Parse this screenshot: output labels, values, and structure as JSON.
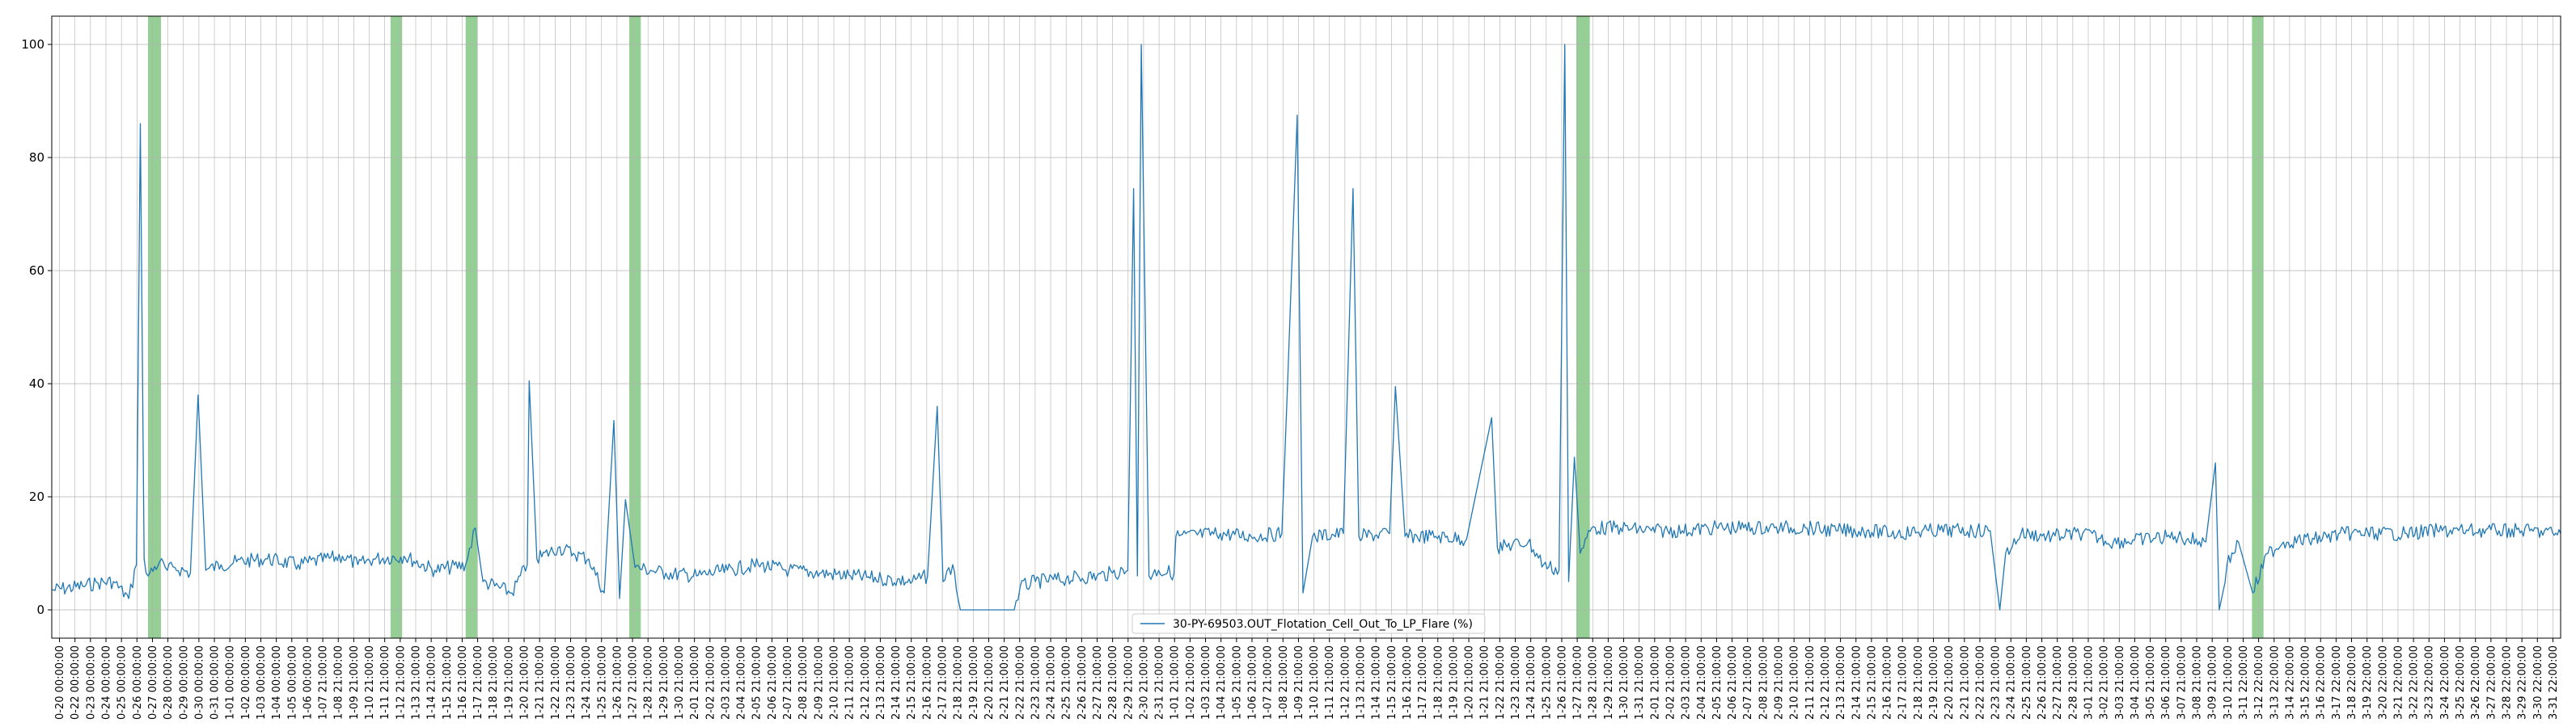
{
  "chart_data": {
    "type": "line",
    "title": "",
    "xlabel": "",
    "ylabel": "",
    "ylim": [
      -5,
      105
    ],
    "yticks": [
      0,
      20,
      40,
      60,
      80,
      100
    ],
    "grid": true,
    "legend_position": "bottom-center",
    "colors": {
      "line": "#1f77b4",
      "highlight": "#2ca02c",
      "grid": "#b0b0b0"
    },
    "series": [
      {
        "name": "30-PY-69503.OUT_Flotation_Cell_Out_To_LP_Flare (%)",
        "points": [
          [
            "10-20 00:00",
            3.5
          ],
          [
            "10-22 00:00",
            4.2
          ],
          [
            "10-23 00:00",
            4.8
          ],
          [
            "10-24 00:00",
            5.0
          ],
          [
            "10-25 00:00",
            2.0
          ],
          [
            "10-25 12:00",
            8.0
          ],
          [
            "10-25 18:00",
            86.0
          ],
          [
            "10-26 00:00",
            9.0
          ],
          [
            "10-26 06:00",
            6.0
          ],
          [
            "10-27 00:00",
            8.5
          ],
          [
            "10-27 12:00",
            7.0
          ],
          [
            "10-28 00:00",
            7.5
          ],
          [
            "10-29 00:00",
            6.5
          ],
          [
            "10-29 12:00",
            38.0
          ],
          [
            "10-30 00:00",
            7.0
          ],
          [
            "10-31 00:00",
            8.0
          ],
          [
            "11-01 00:00",
            8.5
          ],
          [
            "11-03 00:00",
            9.0
          ],
          [
            "11-05 00:00",
            8.0
          ],
          [
            "11-07 21:00",
            9.5
          ],
          [
            "11-08 21:00",
            8.0
          ],
          [
            "11-09 21:00",
            9.0
          ],
          [
            "11-11 21:00",
            9.5
          ],
          [
            "11-13 21:00",
            7.0
          ],
          [
            "11-15 21:00",
            8.0
          ],
          [
            "11-16 12:00",
            14.5
          ],
          [
            "11-17 00:00",
            5.0
          ],
          [
            "11-18 21:00",
            3.0
          ],
          [
            "11-19 21:00",
            8.0
          ],
          [
            "11-20 00:00",
            40.5
          ],
          [
            "11-20 12:00",
            9.0
          ],
          [
            "11-21 21:00",
            11.0
          ],
          [
            "11-22 21:00",
            10.0
          ],
          [
            "11-23 21:00",
            9.0
          ],
          [
            "11-24 21:00",
            3.0
          ],
          [
            "11-25 12:00",
            33.5
          ],
          [
            "11-25 21:00",
            2.0
          ],
          [
            "11-26 06:00",
            19.5
          ],
          [
            "11-26 21:00",
            7.5
          ],
          [
            "11-27 21:00",
            7.0
          ],
          [
            "11-28 21:00",
            6.5
          ],
          [
            "11-30 21:00",
            6.0
          ],
          [
            "12-02 21:00",
            7.0
          ],
          [
            "12-04 21:00",
            8.0
          ],
          [
            "12-06 21:00",
            7.0
          ],
          [
            "12-08 21:00",
            6.5
          ],
          [
            "12-10 21:00",
            6.0
          ],
          [
            "12-12 21:00",
            5.5
          ],
          [
            "12-14 21:00",
            5.0
          ],
          [
            "12-15 21:00",
            6.0
          ],
          [
            "12-16 12:00",
            36.0
          ],
          [
            "12-16 21:00",
            5.0
          ],
          [
            "12-17 12:00",
            8.0
          ],
          [
            "12-18 00:00",
            0.0
          ],
          [
            "12-20 21:00",
            0.0
          ],
          [
            "12-21 12:00",
            0.0
          ],
          [
            "12-21 21:00",
            4.0
          ],
          [
            "12-22 21:00",
            5.0
          ],
          [
            "12-24 21:00",
            5.5
          ],
          [
            "12-26 21:00",
            6.0
          ],
          [
            "12-27 21:00",
            6.5
          ],
          [
            "12-28 21:00",
            7.0
          ],
          [
            "12-29 06:00",
            74.5
          ],
          [
            "12-29 12:00",
            6.0
          ],
          [
            "12-29 18:00",
            100.0
          ],
          [
            "12-30 06:00",
            6.0
          ],
          [
            "12-30 21:00",
            7.0
          ],
          [
            "12-31 21:00",
            6.5
          ],
          [
            "01-01 00:00",
            13.0
          ],
          [
            "01-03 21:00",
            13.5
          ],
          [
            "01-05 21:00",
            13.0
          ],
          [
            "01-07 21:00",
            13.5
          ],
          [
            "01-08 06:00",
            40.0
          ],
          [
            "01-08 21:00",
            87.5
          ],
          [
            "01-09 06:00",
            3.0
          ],
          [
            "01-09 21:00",
            13.0
          ],
          [
            "01-11 21:00",
            13.5
          ],
          [
            "01-12 12:00",
            74.5
          ],
          [
            "01-12 21:00",
            13.0
          ],
          [
            "01-14 21:00",
            13.5
          ],
          [
            "01-15 06:00",
            39.5
          ],
          [
            "01-15 21:00",
            13.0
          ],
          [
            "01-17 21:00",
            13.0
          ],
          [
            "01-19 21:00",
            12.5
          ],
          [
            "01-21 12:00",
            34.0
          ],
          [
            "01-21 21:00",
            11.0
          ],
          [
            "01-23 21:00",
            12.0
          ],
          [
            "01-24 21:00",
            8.0
          ],
          [
            "01-25 21:00",
            7.0
          ],
          [
            "01-26 06:00",
            100.0
          ],
          [
            "01-26 12:00",
            5.0
          ],
          [
            "01-26 21:00",
            27.0
          ],
          [
            "01-27 06:00",
            10.0
          ],
          [
            "01-28 00:00",
            14.5
          ],
          [
            "01-29 21:00",
            14.5
          ],
          [
            "01-31 21:00",
            14.0
          ],
          [
            "02-02 21:00",
            14.0
          ],
          [
            "02-04 21:00",
            14.5
          ],
          [
            "02-06 21:00",
            14.5
          ],
          [
            "02-08 21:00",
            14.5
          ],
          [
            "02-10 21:00",
            14.5
          ],
          [
            "02-12 21:00",
            14.0
          ],
          [
            "02-14 21:00",
            14.0
          ],
          [
            "02-16 21:00",
            13.5
          ],
          [
            "02-18 21:00",
            14.0
          ],
          [
            "02-20 21:00",
            14.0
          ],
          [
            "02-22 21:00",
            14.0
          ],
          [
            "02-23 12:00",
            0.0
          ],
          [
            "02-23 21:00",
            10.0
          ],
          [
            "02-24 21:00",
            13.5
          ],
          [
            "02-26 21:00",
            13.0
          ],
          [
            "02-28 21:00",
            13.5
          ],
          [
            "03-02 21:00",
            12.0
          ],
          [
            "03-04 21:00",
            12.5
          ],
          [
            "03-06 21:00",
            13.0
          ],
          [
            "03-08 21:00",
            12.0
          ],
          [
            "03-09 12:00",
            26.0
          ],
          [
            "03-09 18:00",
            0.0
          ],
          [
            "03-10 06:00",
            8.0
          ],
          [
            "03-11 00:00",
            12.0
          ],
          [
            "03-11 22:00",
            3.0
          ],
          [
            "03-12 22:00",
            10.0
          ],
          [
            "03-13 22:00",
            12.0
          ],
          [
            "03-15 22:00",
            12.5
          ],
          [
            "03-17 22:00",
            13.5
          ],
          [
            "03-19 22:00",
            13.5
          ],
          [
            "03-21 22:00",
            13.5
          ],
          [
            "03-23 22:00",
            14.0
          ],
          [
            "03-25 22:00",
            14.0
          ],
          [
            "03-27 22:00",
            14.0
          ],
          [
            "03-29 22:00",
            14.0
          ],
          [
            "03-31 22:00",
            13.5
          ]
        ]
      }
    ],
    "highlight_spans": [
      [
        "10-26 06:00",
        "10-26 21:00"
      ],
      [
        "11-11 00:00",
        "11-11 18:00"
      ],
      [
        "11-15 21:00",
        "11-16 15:00"
      ],
      [
        "11-26 12:00",
        "11-27 06:00"
      ],
      [
        "01-27 00:00",
        "01-27 21:00"
      ],
      [
        "03-11 21:00",
        "03-12 15:00"
      ]
    ],
    "x_tick_labels": [
      "0-20 00:00:00",
      "0-22 00:00:00",
      "0-23 00:00:00",
      "0-24 00:00:00",
      "0-25 00:00:00",
      "0-26 00:00:00",
      "0-27 00:00:00",
      "0-28 00:00:00",
      "0-29 00:00:00",
      "0-30 00:00:00",
      "0-31 00:00:00",
      "1-01 00:00:00",
      "1-02 00:00:00",
      "1-03 00:00:00",
      "1-04 00:00:00",
      "1-05 00:00:00",
      "1-06 00:00:00",
      "1-07 21:00:00",
      "1-08 21:00:00",
      "1-09 21:00:00",
      "1-10 21:00:00",
      "1-11 21:00:00",
      "1-12 21:00:00",
      "1-13 21:00:00",
      "1-14 21:00:00",
      "1-15 21:00:00",
      "1-16 21:00:00",
      "1-17 21:00:00",
      "1-18 21:00:00",
      "1-19 21:00:00",
      "1-20 21:00:00",
      "1-21 21:00:00",
      "1-22 21:00:00",
      "1-23 21:00:00",
      "1-24 21:00:00",
      "1-25 21:00:00",
      "1-26 21:00:00",
      "1-27 21:00:00",
      "1-28 21:00:00",
      "1-29 21:00:00",
      "1-30 21:00:00",
      "2-01 21:00:00",
      "2-02 21:00:00",
      "2-03 21:00:00",
      "2-04 21:00:00",
      "2-05 21:00:00",
      "2-06 21:00:00",
      "2-07 21:00:00",
      "2-08 21:00:00",
      "2-09 21:00:00",
      "2-10 21:00:00",
      "2-11 21:00:00",
      "2-12 21:00:00",
      "2-13 21:00:00",
      "2-14 21:00:00",
      "2-15 21:00:00",
      "2-16 21:00:00",
      "2-17 21:00:00",
      "2-18 21:00:00",
      "2-19 21:00:00",
      "2-20 21:00:00",
      "2-21 21:00:00",
      "2-22 21:00:00",
      "2-23 21:00:00",
      "2-24 21:00:00",
      "2-25 21:00:00",
      "2-26 21:00:00",
      "2-27 21:00:00",
      "2-28 21:00:00",
      "2-29 21:00:00",
      "2-30 21:00:00",
      "2-31 21:00:00",
      "1-01 21:00:00",
      "1-02 21:00:00",
      "1-03 21:00:00",
      "1-04 21:00:00",
      "1-05 21:00:00",
      "1-06 21:00:00",
      "1-07 21:00:00",
      "1-08 21:00:00",
      "1-09 21:00:00",
      "1-10 21:00:00",
      "1-11 21:00:00",
      "1-12 21:00:00",
      "1-13 21:00:00",
      "1-14 21:00:00",
      "1-15 21:00:00",
      "1-16 21:00:00",
      "1-17 21:00:00",
      "1-18 21:00:00",
      "1-19 21:00:00",
      "1-20 21:00:00",
      "1-21 21:00:00",
      "1-22 21:00:00",
      "1-23 21:00:00",
      "1-24 21:00:00",
      "1-25 21:00:00",
      "1-26 21:00:00",
      "1-27 21:00:00",
      "1-28 21:00:00",
      "1-29 21:00:00",
      "1-30 21:00:00",
      "1-31 21:00:00",
      "2-01 21:00:00",
      "2-02 21:00:00",
      "2-03 21:00:00",
      "2-04 21:00:00",
      "2-05 21:00:00",
      "2-06 21:00:00",
      "2-07 21:00:00",
      "2-08 21:00:00",
      "2-09 21:00:00",
      "2-10 21:00:00",
      "2-11 21:00:00",
      "2-12 21:00:00",
      "2-13 21:00:00",
      "2-14 21:00:00",
      "2-15 21:00:00",
      "2-16 21:00:00",
      "2-17 21:00:00",
      "2-18 21:00:00",
      "2-19 21:00:00",
      "2-20 21:00:00",
      "2-21 21:00:00",
      "2-22 21:00:00",
      "2-23 21:00:00",
      "2-24 21:00:00",
      "2-25 21:00:00",
      "2-26 21:00:00",
      "2-27 21:00:00",
      "2-28 21:00:00",
      "3-01 21:00:00",
      "3-02 21:00:00",
      "3-03 21:00:00",
      "3-04 21:00:00",
      "3-05 21:00:00",
      "3-06 21:00:00",
      "3-07 21:00:00",
      "3-08 21:00:00",
      "3-09 21:00:00",
      "3-10 21:00:00",
      "3-11 22:00:00",
      "3-12 22:00:00",
      "3-13 22:00:00",
      "3-14 22:00:00",
      "3-15 22:00:00",
      "3-16 22:00:00",
      "3-17 22:00:00",
      "3-18 22:00:00",
      "3-19 22:00:00",
      "3-20 22:00:00",
      "3-21 22:00:00",
      "3-22 22:00:00",
      "3-23 22:00:00",
      "3-24 22:00:00",
      "3-25 22:00:00",
      "3-26 22:00:00",
      "3-27 22:00:00",
      "3-28 22:00:00",
      "3-29 22:00:00",
      "3-30 22:00:00",
      "3-31 22:00:00"
    ]
  }
}
